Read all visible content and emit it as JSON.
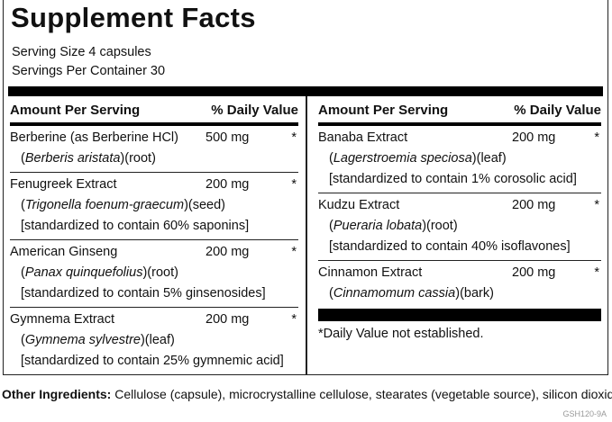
{
  "header": {
    "title": "Supplement Facts",
    "serving_size": "Serving Size 4 capsules",
    "servings_per_container": "Servings Per Container 30"
  },
  "columns": [
    {
      "amount_header": "Amount Per Serving",
      "dv_header": "% Daily Value",
      "items": [
        {
          "name": "Berberine (as Berberine HCl)",
          "amount": "500 mg",
          "dv": "*",
          "details": [
            [
              {
                "text": "("
              },
              {
                "text": "Berberis aristata",
                "italic": true
              },
              {
                "text": ")(root)"
              }
            ]
          ]
        },
        {
          "name": "Fenugreek Extract",
          "amount": "200 mg",
          "dv": "*",
          "details": [
            [
              {
                "text": "("
              },
              {
                "text": "Trigonella foenum-graecum",
                "italic": true
              },
              {
                "text": ")(seed)"
              }
            ],
            [
              {
                "text": "[standardized to contain 60% saponins]"
              }
            ]
          ]
        },
        {
          "name": "American Ginseng",
          "amount": "200 mg",
          "dv": "*",
          "details": [
            [
              {
                "text": "("
              },
              {
                "text": "Panax quinquefolius",
                "italic": true
              },
              {
                "text": ")(root)"
              }
            ],
            [
              {
                "text": "[standardized to contain 5% ginsenosides]"
              }
            ]
          ]
        },
        {
          "name": "Gymnema Extract",
          "amount": "200 mg",
          "dv": "*",
          "details": [
            [
              {
                "text": "("
              },
              {
                "text": "Gymnema sylvestre",
                "italic": true
              },
              {
                "text": ")(leaf)"
              }
            ],
            [
              {
                "text": "[standardized to contain 25% gymnemic acid]"
              }
            ]
          ]
        }
      ]
    },
    {
      "amount_header": "Amount Per Serving",
      "dv_header": "% Daily Value",
      "items": [
        {
          "name": "Banaba Extract",
          "amount": "200 mg",
          "dv": "*",
          "details": [
            [
              {
                "text": "("
              },
              {
                "text": "Lagerstroemia speciosa",
                "italic": true
              },
              {
                "text": ")(leaf)"
              }
            ],
            [
              {
                "text": "[standardized to contain 1% corosolic acid]"
              }
            ]
          ]
        },
        {
          "name": "Kudzu Extract",
          "amount": "200 mg",
          "dv": "*",
          "details": [
            [
              {
                "text": "("
              },
              {
                "text": "Pueraria lobata",
                "italic": true
              },
              {
                "text": ")(root)"
              }
            ],
            [
              {
                "text": "[standardized to contain 40% isoflavones]"
              }
            ]
          ]
        },
        {
          "name": "Cinnamon Extract",
          "amount": "200 mg",
          "dv": "*",
          "details": [
            [
              {
                "text": "("
              },
              {
                "text": "Cinnamomum cassia",
                "italic": true
              },
              {
                "text": ")(bark)"
              }
            ]
          ]
        }
      ],
      "footnote": "*Daily Value not established."
    }
  ],
  "other_ingredients": {
    "label": "Other Ingredients:",
    "text": "Cellulose (capsule), microcrystalline cellulose, stearates (vegetable source), silicon dioxide."
  },
  "code": "GSH120-9A"
}
